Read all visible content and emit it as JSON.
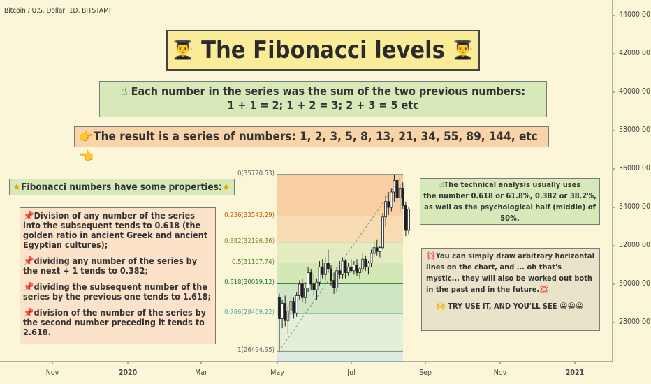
{
  "symbol_title": "Bitcoin / U.S. Dollar, 1D, BITSTAMP",
  "title_box": {
    "text": "The Fibonacci levels",
    "icon": "student-emoji-icon"
  },
  "box1": {
    "icon": "pointing-up-icon",
    "line1": "Each number in the series was the sum of the two previous numbers:",
    "line2": "1 + 1 = 2; 1 + 2 = 3; 2 + 3 = 5 etc"
  },
  "box2": {
    "icon_left": "pointing-right-icon",
    "text": "The result is a series of numbers: 1, 2, 3, 5, 8, 13, 21, 34, 55, 89, 144,  etc",
    "icon_right": "pointing-left-icon"
  },
  "box3": {
    "icon": "star-icon",
    "text": "Fibonacci numbers have some properties:"
  },
  "box4": {
    "icon": "pin-icon",
    "items": [
      "Division of any number of the series into the subsequent tends to 0.618 (the golden ratio in ancient Greek and ancient Egyptian  cultures);",
      "dividing any number of the series by the next + 1 tends to 0.382;",
      "dividing the subsequent number of the series by the previous one tends to 1.618;",
      "division of the number of the series by the second number preceding it tends to 2.618."
    ]
  },
  "box5": {
    "icon": "pointing-up-icon",
    "lines": [
      "The technical analysis usually uses",
      "the number 0.618 or 61.8%, 0.382 or 38.2%,",
      "as well as the psychological half (middle) of 50%."
    ]
  },
  "box6": {
    "icon": "collision-icon",
    "text": "You can simply draw arbitrary horizontal lines on the chart, and ... oh that's mystic... they will also be worked out both in the past and in the future.",
    "cta": "TRY USE IT, AND YOU'LL SEE"
  },
  "colors": {
    "background": "#fbf6d8",
    "up": "#1f1f1f",
    "down": "#1f1f1f",
    "fib_0": "#f9cfa4",
    "fib_236": "#f7dcb3",
    "fib_382": "#e2ecc0",
    "fib_5": "#d4e8b6",
    "fib_618": "#cfe5c3",
    "fib_786": "#e4efd8"
  },
  "chart_data": {
    "type": "candlestick",
    "title": "Bitcoin / U.S. Dollar, 1D, BITSTAMP",
    "y_axis": {
      "ticks": [
        28000,
        30000,
        32000,
        34000,
        36000,
        38000,
        40000,
        42000,
        44000
      ],
      "tick_labels": [
        "28000.00",
        "30000.00",
        "32000.00",
        "34000.00",
        "36000.00",
        "38000.00",
        "40000.00",
        "42000.00",
        "44000.00"
      ],
      "position": "right"
    },
    "x_axis": {
      "tick_labels": [
        "Nov",
        "2020",
        "Mar",
        "May",
        "Jul",
        "Sep",
        "Nov",
        "2021"
      ],
      "bold": [
        "2020",
        "2021"
      ]
    },
    "fib_levels": [
      {
        "ratio": "0",
        "price": 35720.53,
        "label": "0(35720.53)"
      },
      {
        "ratio": "0.236",
        "price": 33543.29,
        "label": "0.236(33543.29)"
      },
      {
        "ratio": "0.382",
        "price": 32196.36,
        "label": "0.382(32196.36)"
      },
      {
        "ratio": "0.5",
        "price": 31107.74,
        "label": "0.5(31107.74)"
      },
      {
        "ratio": "0.618",
        "price": 30019.12,
        "label": "0.618(30019.12)"
      },
      {
        "ratio": "0.786",
        "price": 28469.22,
        "label": "0.786(28469.22)"
      },
      {
        "ratio": "1",
        "price": 26494.95,
        "label": "1(26494.95)"
      }
    ],
    "candles": [
      [
        29300,
        29500,
        26500,
        28200
      ],
      [
        28200,
        29200,
        27700,
        29000
      ],
      [
        29000,
        29400,
        27800,
        28100
      ],
      [
        28100,
        28800,
        27400,
        28600
      ],
      [
        28600,
        29400,
        28200,
        29100
      ],
      [
        29100,
        29300,
        28200,
        28500
      ],
      [
        28500,
        29600,
        28300,
        29400
      ],
      [
        29400,
        30200,
        29200,
        30000
      ],
      [
        30000,
        30300,
        29100,
        29300
      ],
      [
        29300,
        30100,
        29000,
        29800
      ],
      [
        29800,
        30900,
        29600,
        30600
      ],
      [
        30600,
        30800,
        29700,
        30000
      ],
      [
        30000,
        30500,
        29400,
        29700
      ],
      [
        29700,
        30300,
        29200,
        30100
      ],
      [
        30100,
        31200,
        29900,
        30900
      ],
      [
        30900,
        31300,
        30300,
        30500
      ],
      [
        30500,
        31400,
        30200,
        31100
      ],
      [
        31100,
        31800,
        30600,
        30800
      ],
      [
        30800,
        31000,
        29900,
        30200
      ],
      [
        30200,
        30600,
        29500,
        29800
      ],
      [
        29800,
        30900,
        29600,
        30700
      ],
      [
        30700,
        31200,
        30300,
        30500
      ],
      [
        30500,
        31400,
        30300,
        31200
      ],
      [
        31200,
        31300,
        30300,
        30600
      ],
      [
        30600,
        31100,
        30400,
        30900
      ],
      [
        30900,
        31300,
        30600,
        30700
      ],
      [
        30700,
        31200,
        30500,
        31000
      ],
      [
        31000,
        31300,
        30400,
        30600
      ],
      [
        30600,
        30900,
        30300,
        30800
      ],
      [
        30800,
        31600,
        30600,
        31300
      ],
      [
        31300,
        31500,
        30700,
        30900
      ],
      [
        30900,
        31200,
        30500,
        31100
      ],
      [
        31100,
        31800,
        30900,
        31600
      ],
      [
        31600,
        32200,
        31400,
        31900
      ],
      [
        31900,
        32300,
        31500,
        31700
      ],
      [
        31700,
        32000,
        31400,
        31900
      ],
      [
        31900,
        33700,
        31800,
        33500
      ],
      [
        33500,
        34600,
        33000,
        34300
      ],
      [
        34300,
        34800,
        33600,
        34000
      ],
      [
        34000,
        35000,
        33800,
        34800
      ],
      [
        34800,
        35700,
        34300,
        35400
      ],
      [
        35400,
        35500,
        34200,
        34500
      ],
      [
        34500,
        35200,
        33800,
        35000
      ],
      [
        35000,
        35300,
        33900,
        34100
      ],
      [
        34100,
        34300,
        32500,
        32800
      ],
      [
        32800,
        34000,
        32600,
        33900
      ]
    ]
  }
}
